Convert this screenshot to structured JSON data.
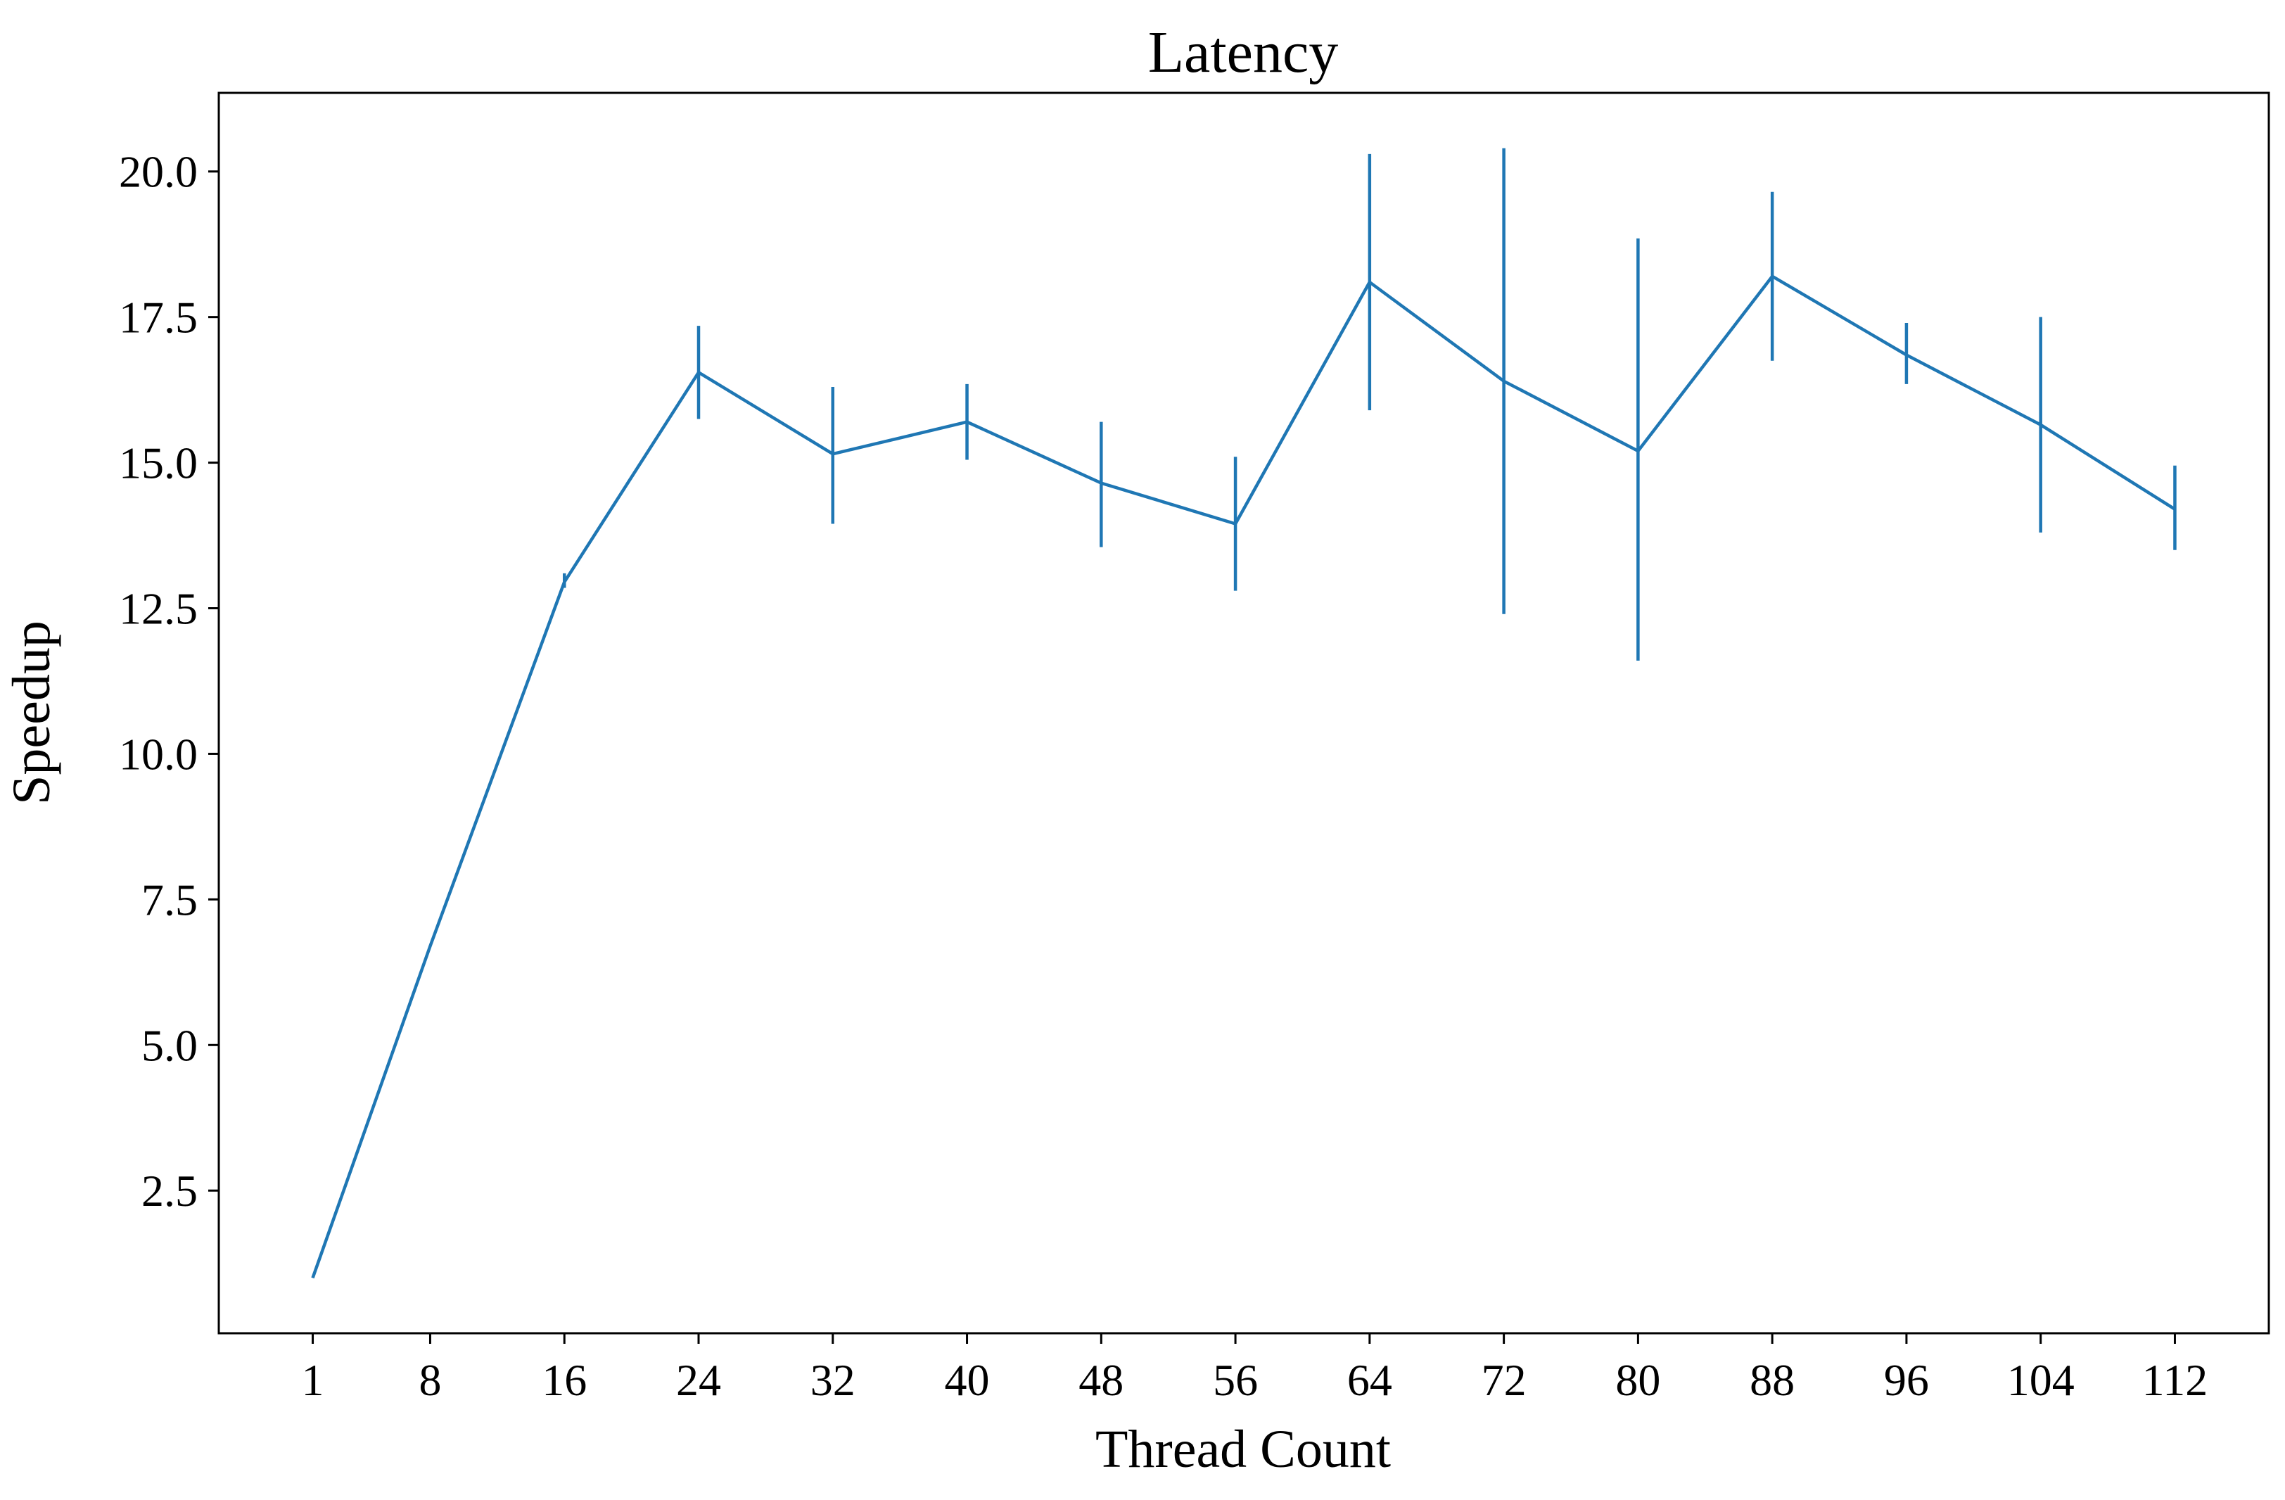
{
  "chart_data": {
    "type": "line",
    "title": "Latency",
    "xlabel": "Thread Count",
    "ylabel": "Speedup",
    "x": [
      1,
      8,
      16,
      24,
      32,
      40,
      48,
      56,
      64,
      72,
      80,
      88,
      96,
      104,
      112
    ],
    "x_tick_labels": [
      "1",
      "8",
      "16",
      "24",
      "32",
      "40",
      "48",
      "56",
      "64",
      "72",
      "80",
      "88",
      "96",
      "104",
      "112"
    ],
    "y_ticks": [
      2.5,
      5.0,
      7.5,
      10.0,
      12.5,
      15.0,
      17.5,
      20.0
    ],
    "y_tick_labels": [
      "2.5",
      "5.0",
      "7.5",
      "10.0",
      "12.5",
      "15.0",
      "17.5",
      "20.0"
    ],
    "xlim": [
      -4.6,
      117.6
    ],
    "ylim": [
      0.05,
      21.35
    ],
    "grid": false,
    "series": [
      {
        "color": "#1f77b4",
        "values": [
          1.0,
          6.7,
          12.95,
          16.55,
          15.15,
          15.7,
          14.65,
          13.95,
          18.1,
          16.4,
          15.2,
          18.2,
          16.85,
          15.65,
          14.2
        ],
        "err_low": [
          1.0,
          6.7,
          12.85,
          15.75,
          13.95,
          15.05,
          13.55,
          12.8,
          15.9,
          12.4,
          11.6,
          16.75,
          16.35,
          13.8,
          13.5
        ],
        "err_high": [
          1.0,
          6.7,
          13.1,
          17.35,
          16.3,
          16.35,
          15.7,
          15.1,
          20.3,
          20.4,
          18.85,
          19.65,
          17.4,
          17.5,
          14.95
        ]
      }
    ]
  }
}
